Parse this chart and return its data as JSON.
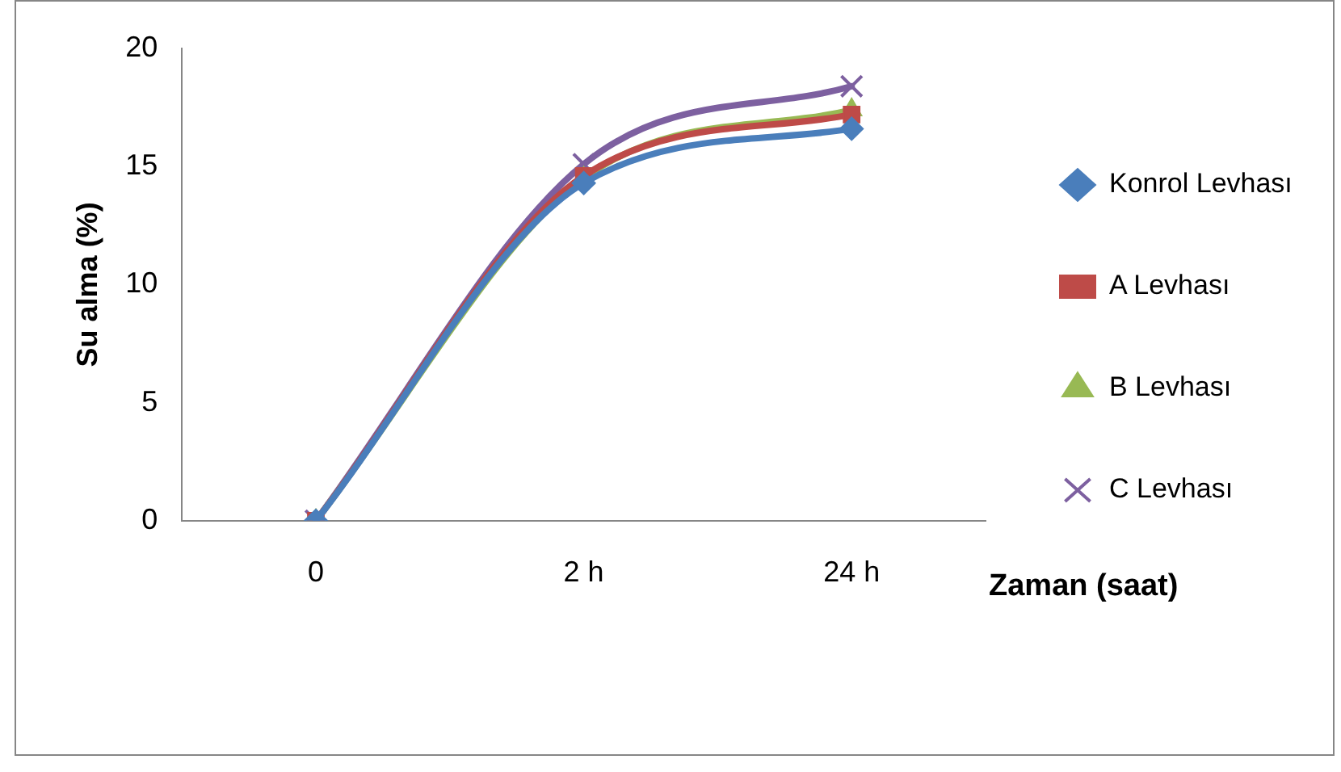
{
  "chart_data": {
    "type": "line",
    "ylabel": "Su alma (%)",
    "xlabel": "Zaman (saat)",
    "categories": [
      "0",
      "2 h",
      "24 h"
    ],
    "ylim": [
      0,
      20
    ],
    "yticks": [
      0,
      5,
      10,
      15,
      20
    ],
    "grid": false,
    "legend": "right",
    "series": [
      {
        "name": "Konrol Levhası",
        "color": "#4a7ebb",
        "marker": "diamond",
        "values": [
          0,
          14.3,
          16.6
        ]
      },
      {
        "name": "A Levhası",
        "color": "#be4b48",
        "marker": "square",
        "values": [
          0,
          14.6,
          17.2
        ]
      },
      {
        "name": "B Levhası",
        "color": "#98b954",
        "marker": "triangle",
        "values": [
          0,
          14.5,
          17.4
        ]
      },
      {
        "name": "C Levhası",
        "color": "#7d60a0",
        "marker": "cross",
        "values": [
          0,
          15.1,
          18.4
        ]
      }
    ]
  }
}
